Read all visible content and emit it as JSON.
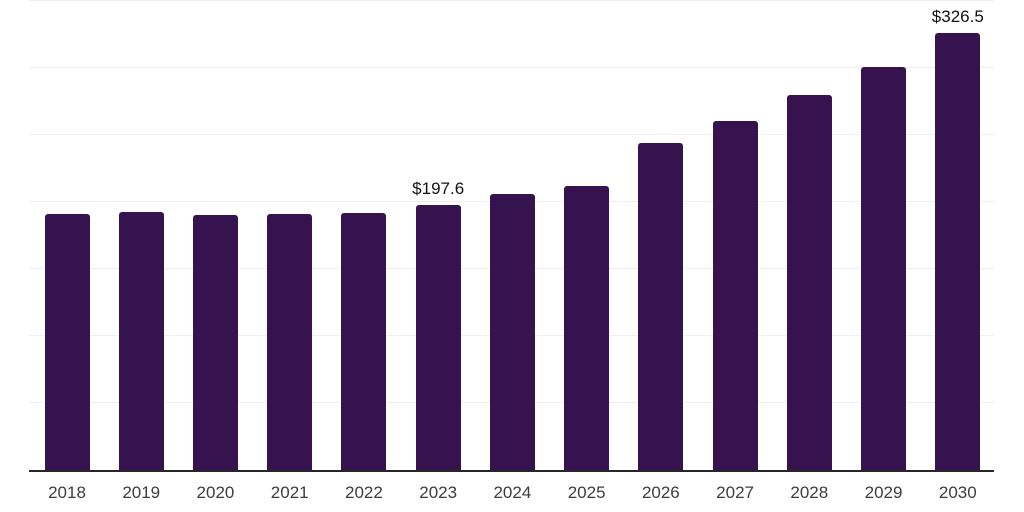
{
  "chart_data": {
    "type": "bar",
    "title": "",
    "xlabel": "",
    "ylabel": "",
    "categories": [
      "2018",
      "2019",
      "2020",
      "2021",
      "2022",
      "2023",
      "2024",
      "2025",
      "2026",
      "2027",
      "2028",
      "2029",
      "2030"
    ],
    "values": [
      190.9,
      192.3,
      190.2,
      190.9,
      191.5,
      197.6,
      205.9,
      211.8,
      243.9,
      260.2,
      279.7,
      300.4,
      326.5
    ],
    "data_labels": [
      {
        "category": "2023",
        "text": "$197.6"
      },
      {
        "category": "2030",
        "text": "$326.5"
      }
    ],
    "value_prefix": "$",
    "ylim": [
      0,
      350
    ],
    "gridline_interval": 50,
    "gridlines_at": [
      50,
      100,
      150,
      200,
      250,
      300,
      350
    ],
    "grid": "horizontal",
    "y_axis_labels_visible": false,
    "legend_position": "none"
  },
  "style": {
    "bar_color": "#36134F",
    "gridline_color": "#efefef",
    "axis_line_color": "#262626",
    "tick_label_color": "#3d3d3d",
    "data_label_color": "#111111",
    "background_color": "#ffffff"
  }
}
